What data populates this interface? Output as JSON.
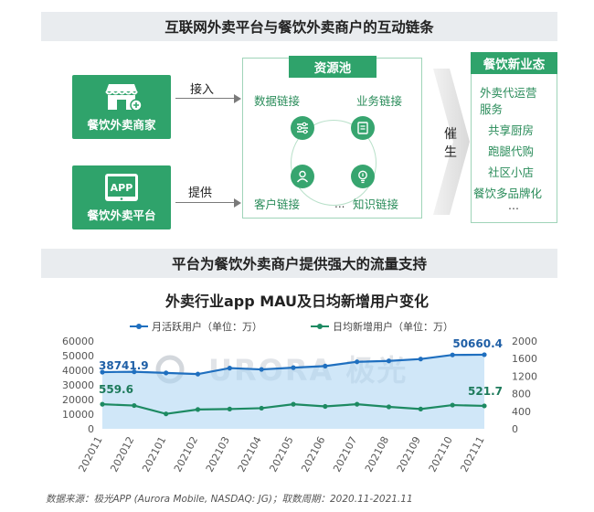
{
  "diagram": {
    "title": "互联网外卖平台与餐饮外卖商户的互动链条",
    "merchant_label": "餐饮外卖商家",
    "platform_label": "餐饮外卖平台",
    "app_badge": "APP",
    "connect_label": "接入",
    "provide_label": "提供",
    "resource_pool": {
      "title": "资源池",
      "links": [
        "数据链接",
        "业务链接",
        "客户链接",
        "知识链接"
      ],
      "ellipsis": "..."
    },
    "drive_label": "催生",
    "new_business": {
      "title": "餐饮新业态",
      "items": [
        "外卖代运营",
        "服务",
        "共享厨房",
        "跑腿代购",
        "社区小店",
        "餐饮多品牌化",
        "..."
      ]
    },
    "colors": {
      "green": "#2fa36b",
      "light_green": "#9fd4b8"
    }
  },
  "section2_title": "平台为餐饮外卖商户提供强大的流量支持",
  "chart_data": {
    "type": "line",
    "title": "外卖行业app MAU及日均新增用户变化",
    "categories": [
      "202011",
      "202012",
      "202101",
      "202102",
      "202103",
      "202104",
      "202105",
      "202106",
      "202107",
      "202108",
      "202109",
      "202110",
      "202111"
    ],
    "series": [
      {
        "name": "月活跃用户（单位：万）",
        "axis": "left",
        "color": "#1f6fbf",
        "values": [
          38741.9,
          39000,
          38200,
          37400,
          41500,
          40600,
          41800,
          42900,
          45800,
          46400,
          47700,
          50500,
          50660.4
        ],
        "labels": {
          "0": "38741.9",
          "12": "50660.4"
        }
      },
      {
        "name": "日均新增用户（单位：万）",
        "axis": "right",
        "color": "#1d8a62",
        "values": [
          559.6,
          530,
          340,
          440,
          450,
          470,
          560,
          510,
          560,
          500,
          450,
          540,
          521.7
        ],
        "labels": {
          "0": "559.6",
          "12": "521.7"
        }
      }
    ],
    "y_left": {
      "min": 0,
      "max": 60000,
      "ticks": [
        "0",
        "10000",
        "20000",
        "30000",
        "40000",
        "50000",
        "60000"
      ]
    },
    "y_right": {
      "min": 0,
      "max": 2000,
      "ticks": [
        "0",
        "400",
        "800",
        "1200",
        "1600",
        "2000"
      ]
    },
    "legend_position": "top",
    "grid": false,
    "watermark": "URORA 极光"
  },
  "source": "数据来源：极光APP (Aurora Mobile, NASDAQ: JG)；取数周期：2020.11-2021.11"
}
